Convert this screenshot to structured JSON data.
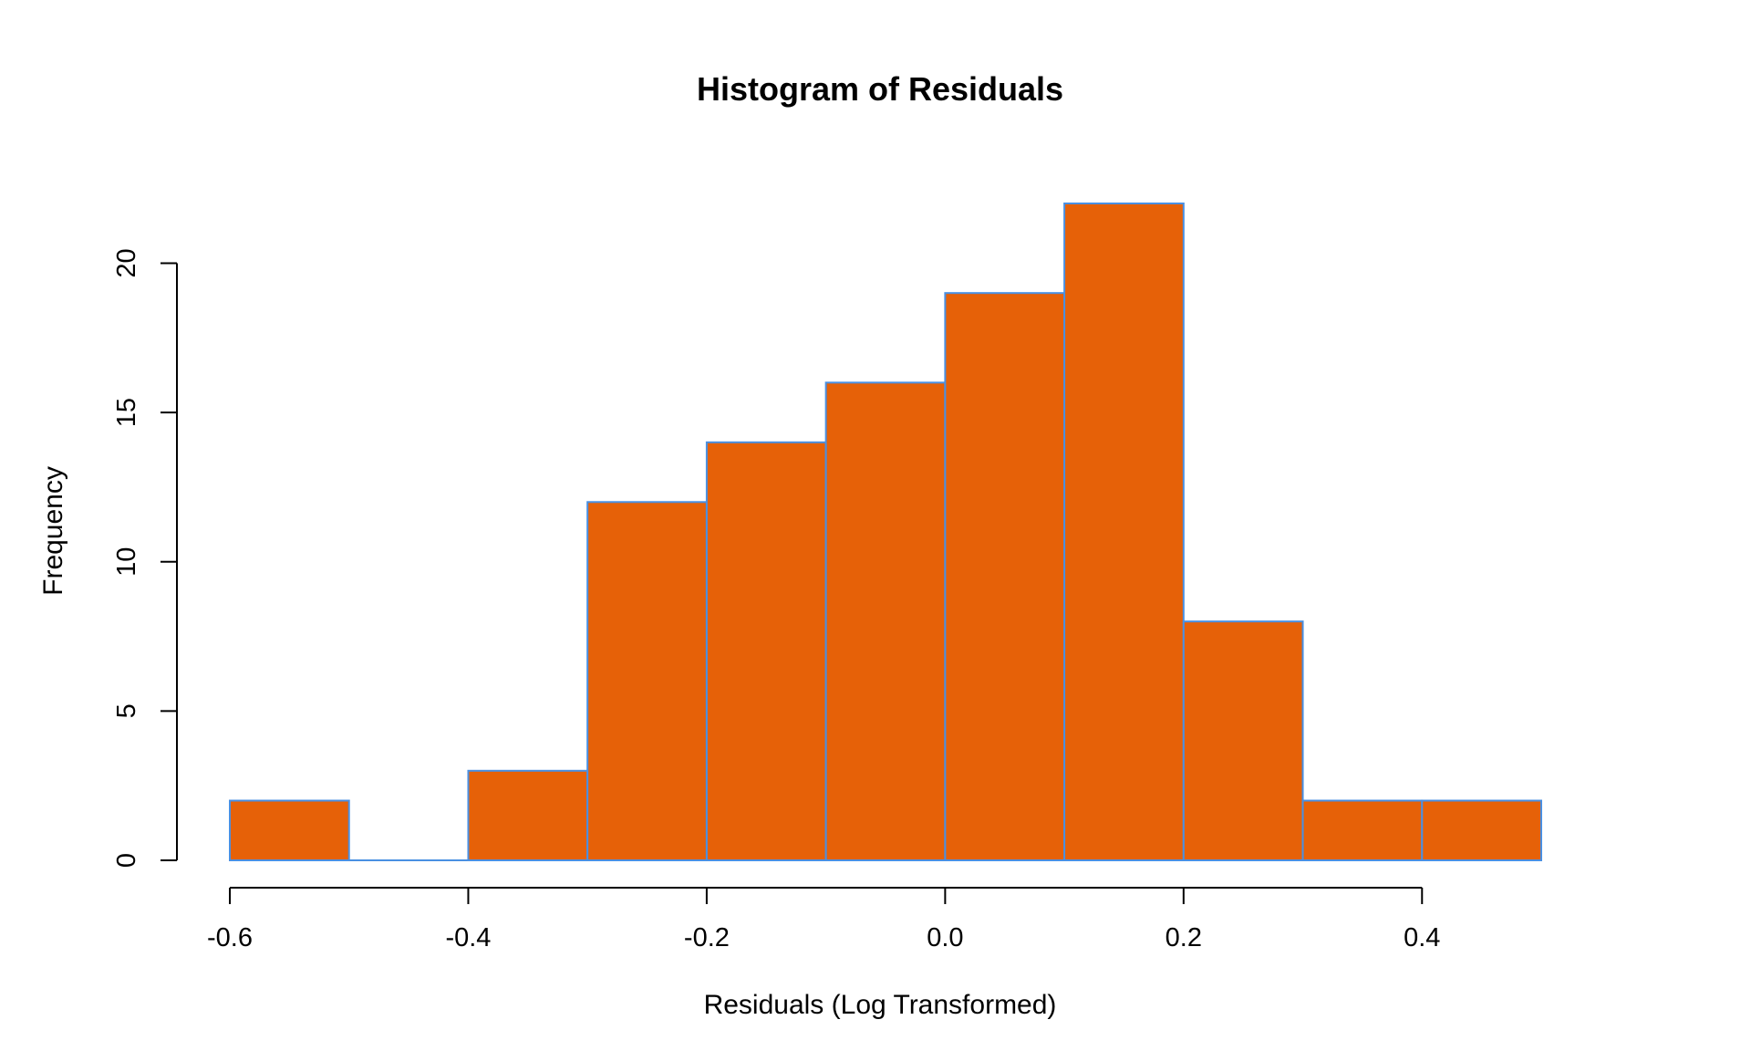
{
  "chart_data": {
    "type": "bar",
    "subtype": "histogram",
    "title": "Histogram of Residuals",
    "xlabel": "Residuals (Log Transformed)",
    "ylabel": "Frequency",
    "bins": [
      {
        "start": -0.6,
        "end": -0.5,
        "count": 2
      },
      {
        "start": -0.5,
        "end": -0.4,
        "count": 0
      },
      {
        "start": -0.4,
        "end": -0.3,
        "count": 3
      },
      {
        "start": -0.3,
        "end": -0.2,
        "count": 12
      },
      {
        "start": -0.2,
        "end": -0.1,
        "count": 14
      },
      {
        "start": -0.1,
        "end": 0.0,
        "count": 16
      },
      {
        "start": 0.0,
        "end": 0.1,
        "count": 19
      },
      {
        "start": 0.1,
        "end": 0.2,
        "count": 22
      },
      {
        "start": 0.2,
        "end": 0.3,
        "count": 8
      },
      {
        "start": 0.3,
        "end": 0.4,
        "count": 2
      },
      {
        "start": 0.4,
        "end": 0.5,
        "count": 2
      }
    ],
    "xlim": [
      -0.6,
      0.5
    ],
    "ylim": [
      0,
      22
    ],
    "x_ticks": [
      {
        "value": -0.6,
        "label": "-0.6"
      },
      {
        "value": -0.4,
        "label": "-0.4"
      },
      {
        "value": -0.2,
        "label": "-0.2"
      },
      {
        "value": 0.0,
        "label": "0.0"
      },
      {
        "value": 0.2,
        "label": "0.2"
      },
      {
        "value": 0.4,
        "label": "0.4"
      }
    ],
    "y_ticks": [
      {
        "value": 0,
        "label": "0"
      },
      {
        "value": 5,
        "label": "5"
      },
      {
        "value": 10,
        "label": "10"
      },
      {
        "value": 15,
        "label": "15"
      },
      {
        "value": 20,
        "label": "20"
      }
    ],
    "grid": false,
    "legend": "none",
    "colors": {
      "bar_fill": "#E66108",
      "bar_border": "#4A90E2",
      "axis": "#000000"
    }
  }
}
